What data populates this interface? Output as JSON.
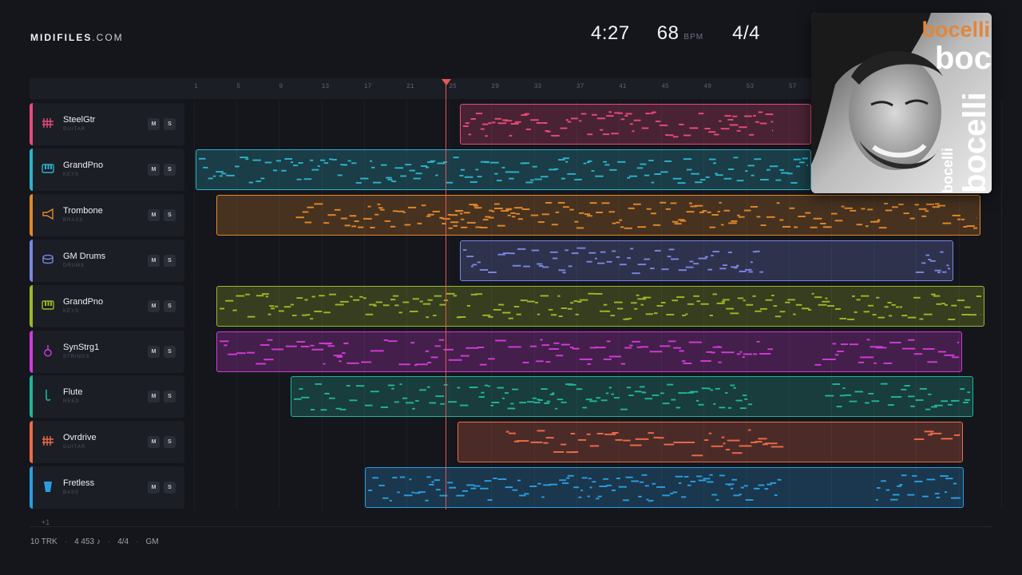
{
  "header": {
    "brand_bold": "MIDIFILES",
    "brand_domain": ".COM",
    "duration": "4:27",
    "tempo": "68",
    "tempo_unit": "BPM",
    "time_signature": "4/4"
  },
  "ruler": {
    "ticks": [
      "1",
      "5",
      "9",
      "13",
      "17",
      "21",
      "25",
      "29",
      "33",
      "37",
      "41",
      "45",
      "49",
      "53",
      "57"
    ]
  },
  "tracks": [
    {
      "name": "SteelGtr",
      "category": "GUITAR",
      "color": "#e84a7a",
      "icon": "guitar-icon",
      "mute": "M",
      "solo": "S"
    },
    {
      "name": "GrandPno",
      "category": "KEYS",
      "color": "#2bb3c9",
      "icon": "keys-icon",
      "mute": "M",
      "solo": "S"
    },
    {
      "name": "Trombone",
      "category": "BRASS",
      "color": "#e0882a",
      "icon": "brass-icon",
      "mute": "M",
      "solo": "S"
    },
    {
      "name": "GM Drums",
      "category": "DRUMS",
      "color": "#7a86e0",
      "icon": "drum-icon",
      "mute": "M",
      "solo": "S"
    },
    {
      "name": "GrandPno",
      "category": "KEYS",
      "color": "#9ab828",
      "icon": "keys-icon",
      "mute": "M",
      "solo": "S"
    },
    {
      "name": "SynStrg1",
      "category": "STRINGS",
      "color": "#d23ad8",
      "icon": "violin-icon",
      "mute": "M",
      "solo": "S"
    },
    {
      "name": "Flute",
      "category": "REED",
      "color": "#22b39a",
      "icon": "reed-icon",
      "mute": "M",
      "solo": "S"
    },
    {
      "name": "Ovrdrive",
      "category": "GUITAR",
      "color": "#ee6a48",
      "icon": "guitar-icon",
      "mute": "M",
      "solo": "S"
    },
    {
      "name": "Fretless",
      "category": "BASS",
      "color": "#2a9de0",
      "icon": "bass-icon",
      "mute": "M",
      "solo": "S"
    }
  ],
  "more_tracks": "+1",
  "footer": {
    "tracks": "10 TRK",
    "notes": "4 453 ♪",
    "time_signature": "4/4",
    "standard": "GM"
  },
  "cover": {
    "artist_words": [
      "bocelli",
      "boc",
      "bocelli",
      "bocelli"
    ]
  }
}
